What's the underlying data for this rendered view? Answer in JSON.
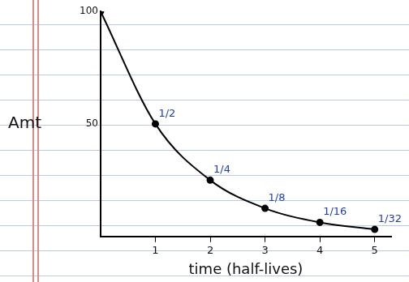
{
  "chart_data": {
    "type": "line",
    "x_label": "time (half-lives)",
    "y_label": "Amt",
    "x": [
      0,
      1,
      2,
      3,
      4,
      5
    ],
    "values": [
      100,
      50,
      25,
      12.5,
      6.25,
      3.125
    ],
    "value_labels": [
      null,
      "1/2",
      "1/4",
      "1/8",
      "1/16",
      "1/32"
    ],
    "data_labels": true,
    "color": "#000000",
    "marker": "circle",
    "line_style": "solid",
    "xlim": [
      0,
      5.3
    ],
    "xticks": [
      1,
      2,
      3,
      4,
      5
    ],
    "ylim": [
      0,
      100
    ],
    "yticks": [
      50,
      100
    ],
    "grid": false
  }
}
